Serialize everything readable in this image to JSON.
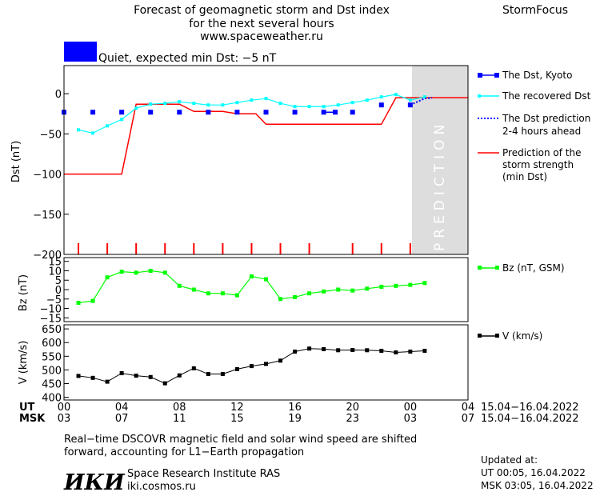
{
  "header": {
    "title_lines": [
      "Forecast of geomagnetic storm and Dst index",
      "for the next several hours",
      "www.spaceweather.ru"
    ],
    "brand": "StormFocus",
    "status_color": "#0000ff",
    "status_text": "Quiet, expected min Dst: −5 nT"
  },
  "prediction_label": "PREDICTION",
  "colors": {
    "dst_kyoto": "#0000ff",
    "dst_recovered": "#00ffff",
    "dst_prediction": "#0000ff",
    "storm_strength": "#ff0000",
    "bz": "#00ff00",
    "v": "#000000",
    "prediction_zone": "#dddddd"
  },
  "chart_data": [
    {
      "type": "line",
      "ylabel": "Dst (nT)",
      "ylim": [
        -200,
        35
      ],
      "yticks": [
        0,
        -50,
        -100,
        -150,
        -200
      ],
      "xlim": [
        0,
        28
      ],
      "prediction_from": 24,
      "legend_position": "right",
      "series": [
        {
          "name": "The Dst, Kyoto",
          "style": "markers",
          "x": [
            0,
            2,
            4,
            6,
            8,
            10,
            12,
            14,
            16,
            18,
            18.8,
            20,
            22,
            24
          ],
          "y": [
            -23,
            -23,
            -23,
            -23,
            -23,
            -23,
            -23,
            -23,
            -23,
            -23,
            -23,
            -23,
            -14,
            -14
          ]
        },
        {
          "name": "The recovered Dst",
          "style": "line-markers",
          "x": [
            1,
            2,
            3,
            4,
            5,
            6,
            7,
            8,
            9,
            10,
            11,
            12,
            13,
            14,
            15,
            16,
            17,
            18,
            19,
            20,
            21,
            22,
            23,
            24,
            25
          ],
          "y": [
            -45,
            -49,
            -40,
            -32,
            -18,
            -13,
            -12,
            -10,
            -12,
            -14,
            -14,
            -11,
            -8,
            -6,
            -12,
            -16,
            -16,
            -16,
            -14,
            -11,
            -8,
            -4,
            -1,
            -8,
            -4
          ]
        },
        {
          "name": "The Dst prediction",
          "name_line2": "2-4 hours ahead",
          "style": "dotted",
          "x": [
            24,
            24.5,
            25,
            25.5
          ],
          "y": [
            -14,
            -10,
            -6,
            -5
          ]
        },
        {
          "name": "Prediction of the",
          "name_line2": "storm strength",
          "name_line3": "(min Dst)",
          "style": "step",
          "x": [
            0,
            4,
            5,
            8,
            9,
            11,
            12,
            13.3,
            14,
            22,
            23,
            28
          ],
          "y": [
            -100,
            -100,
            -13,
            -13,
            -22,
            -22,
            -25,
            -25,
            -38,
            -38,
            -5,
            -5
          ]
        }
      ],
      "storm_ticks_x": [
        1,
        3,
        5,
        7,
        9,
        11,
        13,
        15,
        17,
        20,
        22,
        24
      ]
    },
    {
      "type": "line",
      "ylabel": "Bz (nT)",
      "ylim": [
        -17,
        17
      ],
      "yticks": [
        15,
        10,
        5,
        0,
        -5,
        -10,
        -15
      ],
      "legend_position": "right",
      "series": [
        {
          "name": "Bz (nT, GSM)",
          "x": [
            1,
            2,
            3,
            4,
            5,
            6,
            7,
            8,
            9,
            10,
            11,
            12,
            13,
            14,
            15,
            16,
            17,
            18,
            19,
            20,
            21,
            22,
            23,
            24,
            25
          ],
          "y": [
            -7,
            -6,
            6.5,
            9.5,
            9,
            10,
            9,
            2,
            0,
            -2,
            -2,
            -3,
            7,
            5.5,
            -5,
            -4,
            -2,
            -1,
            0,
            -0.5,
            0.5,
            1.5,
            2,
            2.5,
            3.5
          ]
        }
      ]
    },
    {
      "type": "line",
      "ylabel": "V (km/s)",
      "ylim": [
        390,
        665
      ],
      "yticks": [
        650,
        600,
        550,
        500,
        450,
        400
      ],
      "legend_position": "right",
      "series": [
        {
          "name": "V (km/s)",
          "x": [
            1,
            2,
            3,
            4,
            5,
            6,
            7,
            8,
            9,
            10,
            11,
            12,
            13,
            14,
            15,
            16,
            17,
            18,
            19,
            20,
            21,
            22,
            23,
            24,
            25
          ],
          "y": [
            478,
            471,
            457,
            488,
            479,
            474,
            451,
            480,
            506,
            485,
            485,
            503,
            514,
            522,
            534,
            567,
            578,
            576,
            572,
            573,
            572,
            570,
            564,
            567,
            570
          ]
        }
      ]
    }
  ],
  "xaxis": {
    "ut_label": "UT",
    "msk_label": "MSK",
    "ut_ticks": [
      "00",
      "04",
      "08",
      "12",
      "16",
      "20",
      "00",
      "04"
    ],
    "msk_ticks": [
      "03",
      "07",
      "11",
      "15",
      "19",
      "23",
      "03",
      "07"
    ],
    "ut_date": "15.04−16.04.2022",
    "msk_date": "15.04−16.04.2022"
  },
  "footer": {
    "note_line1": "Real−time DSCOVR magnetic field and solar wind speed are shifted",
    "note_line2": "forward, accounting for L1−Earth propagation",
    "logo_text": "ИКИ",
    "institute": "Space Research Institute RAS",
    "website": "iki.cosmos.ru",
    "updated_label": "Updated at:",
    "updated_ut": "UT   00:05, 16.04.2022",
    "updated_msk": "MSK 03:05, 16.04.2022"
  }
}
